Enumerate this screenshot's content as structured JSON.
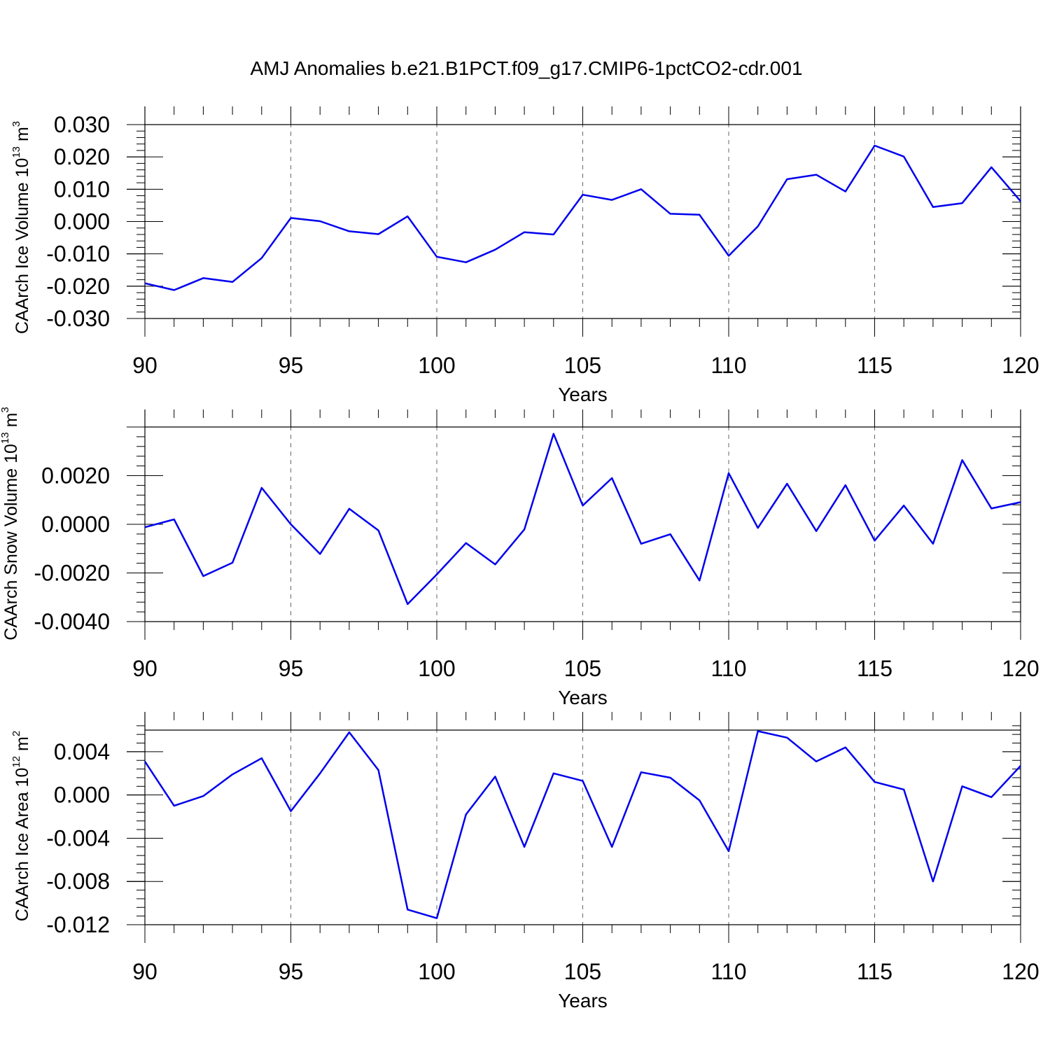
{
  "title": "AMJ Anomalies b.e21.B1PCT.f09_g17.CMIP6-1pctCO2-cdr.001",
  "chart_data": [
    {
      "type": "line",
      "ylabel_main": "CAArch Ice Volume 10",
      "ylabel_exp": "13",
      "ylabel_unit": " m",
      "ylabel_unit_exp": "3",
      "xlabel": "Years",
      "xlim": [
        90,
        120
      ],
      "ylim": [
        -0.03,
        0.03
      ],
      "x_ticks": [
        90,
        95,
        100,
        105,
        110,
        115,
        120
      ],
      "x_tick_labels": [
        "90",
        "95",
        "100",
        "105",
        "110",
        "115",
        "120"
      ],
      "y_ticks": [
        -0.03,
        -0.02,
        -0.01,
        0.0,
        0.01,
        0.02,
        0.03
      ],
      "y_tick_labels": [
        "-0.030",
        "-0.020",
        "-0.010",
        "0.000",
        "0.010",
        "0.020",
        "0.030"
      ],
      "reference_line": 0.03,
      "series_color": "#0000ee",
      "series": [
        {
          "name": "CAArch Ice Volume",
          "x": [
            90,
            91,
            92,
            93,
            94,
            95,
            96,
            97,
            98,
            99,
            100,
            101,
            102,
            103,
            104,
            105,
            106,
            107,
            108,
            109,
            110,
            111,
            112,
            113,
            114,
            115,
            116,
            117,
            118,
            119,
            120
          ],
          "values": [
            -0.0191,
            -0.0212,
            -0.0175,
            -0.0187,
            -0.0113,
            0.0011,
            0.0001,
            -0.003,
            -0.0039,
            0.0016,
            -0.0109,
            -0.0126,
            -0.0087,
            -0.0033,
            -0.004,
            0.0083,
            0.0067,
            0.01,
            0.0024,
            0.0021,
            -0.0106,
            -0.0015,
            0.0131,
            0.0145,
            0.0093,
            0.0235,
            0.0201,
            0.0045,
            0.0057,
            0.0168,
            0.0063
          ]
        }
      ]
    },
    {
      "type": "line",
      "ylabel_main": "CAArch Snow Volume 10",
      "ylabel_exp": "13",
      "ylabel_unit": " m",
      "ylabel_unit_exp": "3",
      "xlabel": "Years",
      "xlim": [
        90,
        120
      ],
      "ylim": [
        -0.004,
        0.004
      ],
      "x_ticks": [
        90,
        95,
        100,
        105,
        110,
        115,
        120
      ],
      "x_tick_labels": [
        "90",
        "95",
        "100",
        "105",
        "110",
        "115",
        "120"
      ],
      "y_ticks": [
        -0.004,
        -0.002,
        0.0,
        0.002
      ],
      "y_tick_labels": [
        "-0.0040",
        "-0.0020",
        "0.0000",
        "0.0020"
      ],
      "reference_line": 0.004,
      "series_color": "#0000ee",
      "series": [
        {
          "name": "CAArch Snow Volume",
          "x": [
            90,
            91,
            92,
            93,
            94,
            95,
            96,
            97,
            98,
            99,
            100,
            101,
            102,
            103,
            104,
            105,
            106,
            107,
            108,
            109,
            110,
            111,
            112,
            113,
            114,
            115,
            116,
            117,
            118,
            119,
            120
          ],
          "values": [
            -0.00012,
            0.0002,
            -0.00213,
            -0.00158,
            0.0015,
            0.0,
            -0.00122,
            0.00064,
            -0.00025,
            -0.00328,
            -0.00206,
            -0.00077,
            -0.00165,
            -0.00021,
            0.00372,
            0.00077,
            0.0019,
            -0.0008,
            -0.00041,
            -0.00231,
            0.0021,
            -0.00015,
            0.00167,
            -0.00028,
            0.00161,
            -0.00067,
            0.00077,
            -0.0008,
            0.00264,
            0.00065,
            0.00091
          ]
        }
      ]
    },
    {
      "type": "line",
      "ylabel_main": "CAArch Ice Area 10",
      "ylabel_exp": "12",
      "ylabel_unit": " m",
      "ylabel_unit_exp": "2",
      "xlabel": "Years",
      "xlim": [
        90,
        120
      ],
      "ylim": [
        -0.012,
        0.006
      ],
      "x_ticks": [
        90,
        95,
        100,
        105,
        110,
        115,
        120
      ],
      "x_tick_labels": [
        "90",
        "95",
        "100",
        "105",
        "110",
        "115",
        "120"
      ],
      "y_ticks": [
        -0.012,
        -0.008,
        -0.004,
        0.0,
        0.004
      ],
      "y_tick_labels": [
        "-0.012",
        "-0.008",
        "-0.004",
        "0.000",
        "0.004"
      ],
      "reference_line": 0.006,
      "series_color": "#0000ee",
      "series": [
        {
          "name": "CAArch Ice Area",
          "x": [
            90,
            91,
            92,
            93,
            94,
            95,
            96,
            97,
            98,
            99,
            100,
            101,
            102,
            103,
            104,
            105,
            106,
            107,
            108,
            109,
            110,
            111,
            112,
            113,
            114,
            115,
            116,
            117,
            118,
            119,
            120
          ],
          "values": [
            0.0031,
            -0.001,
            -0.0001,
            0.0019,
            0.0034,
            -0.0015,
            0.002,
            0.0058,
            0.0023,
            -0.0106,
            -0.0114,
            -0.0018,
            0.0017,
            -0.0048,
            0.002,
            0.0013,
            -0.0048,
            0.0021,
            0.0016,
            -0.0005,
            -0.0052,
            0.0059,
            0.0053,
            0.0031,
            0.0044,
            0.0012,
            0.0005,
            -0.008,
            0.0008,
            -0.0002,
            0.0027
          ]
        }
      ]
    }
  ]
}
